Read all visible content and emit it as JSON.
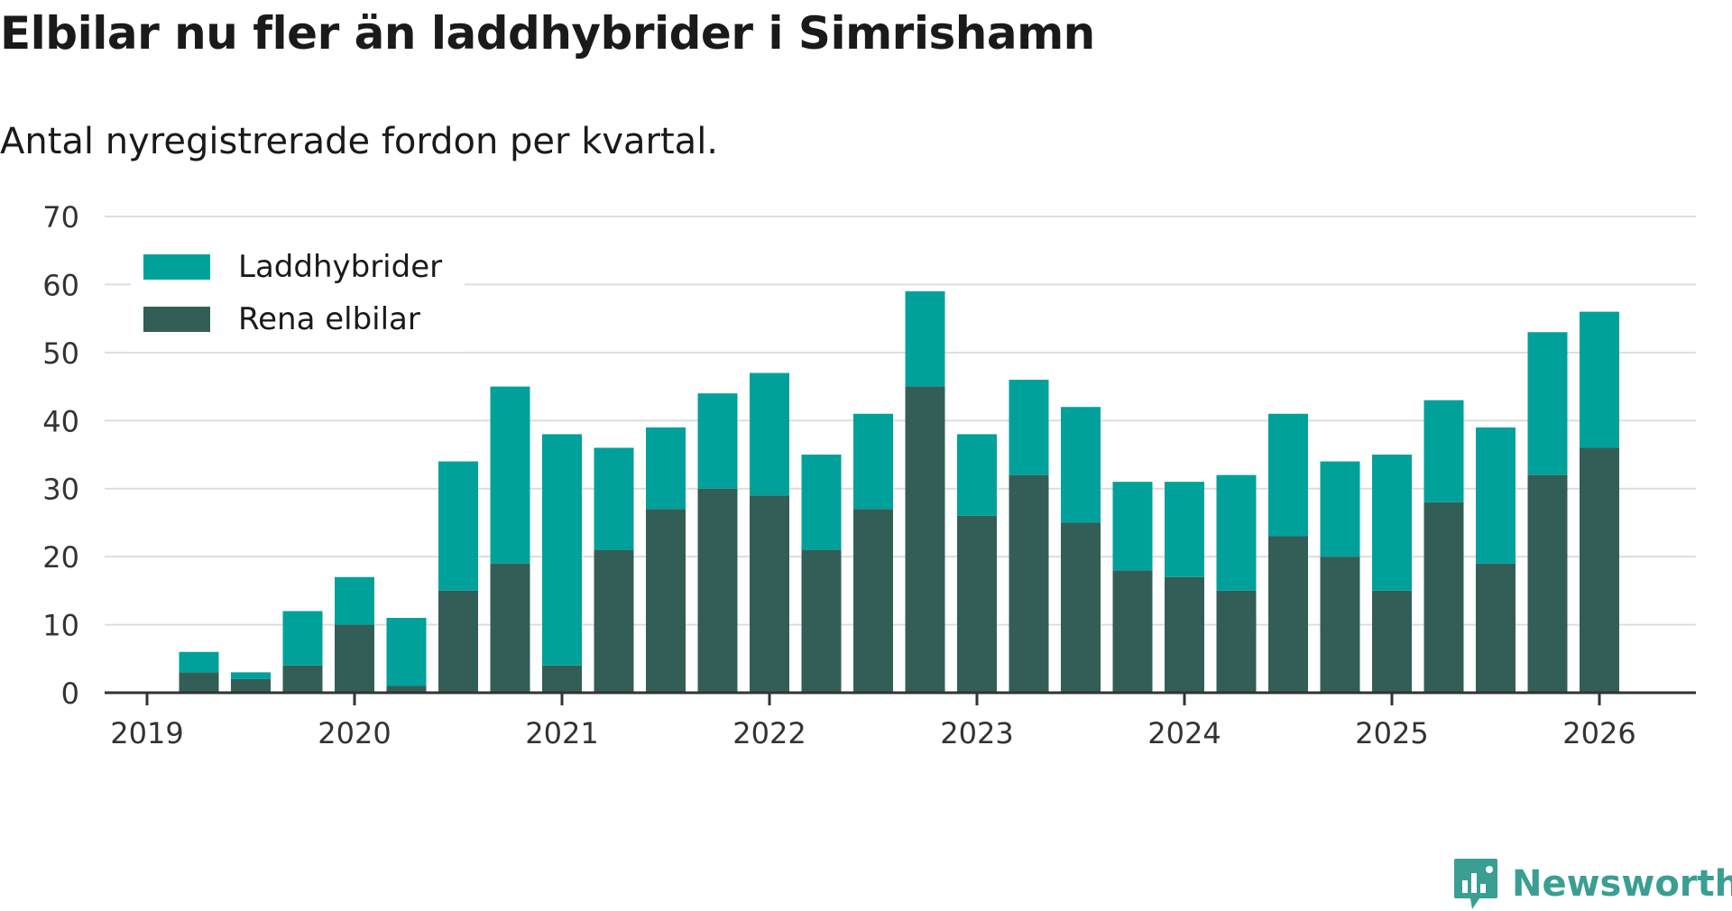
{
  "chart_data": {
    "type": "bar",
    "stacked": true,
    "title": "Elbilar nu fler än laddhybrider i Simrishamn",
    "subtitle": "Antal nyregistrerade fordon per kvartal.",
    "xlabel": "",
    "ylabel": "",
    "ylim": [
      0,
      70
    ],
    "yticks": [
      0,
      10,
      20,
      30,
      40,
      50,
      60,
      70
    ],
    "year_ticks": [
      "2019",
      "2020",
      "2021",
      "2022",
      "2023",
      "2024",
      "2025",
      "2026"
    ],
    "categories": [
      "2019 Q2",
      "2019 Q3",
      "2019 Q4",
      "2020 Q1",
      "2020 Q2",
      "2020 Q3",
      "2020 Q4",
      "2021 Q1",
      "2021 Q2",
      "2021 Q3",
      "2021 Q4",
      "2022 Q1",
      "2022 Q2",
      "2022 Q3",
      "2022 Q4",
      "2023 Q1",
      "2023 Q2",
      "2023 Q3",
      "2023 Q4",
      "2024 Q1",
      "2024 Q2",
      "2024 Q3",
      "2024 Q4",
      "2025 Q1",
      "2025 Q2",
      "2025 Q3",
      "2025 Q4",
      "2026 Q1"
    ],
    "series": [
      {
        "name": "Rena elbilar",
        "color": "#335e58",
        "values": [
          3,
          2,
          4,
          10,
          1,
          15,
          19,
          4,
          21,
          27,
          30,
          29,
          21,
          27,
          45,
          26,
          32,
          25,
          18,
          17,
          15,
          23,
          20,
          15,
          28,
          19,
          32,
          36
        ]
      },
      {
        "name": "Laddhybrider",
        "color": "#00a19a",
        "values": [
          3,
          1,
          8,
          7,
          10,
          19,
          26,
          34,
          15,
          12,
          14,
          18,
          14,
          14,
          14,
          12,
          14,
          17,
          13,
          14,
          17,
          18,
          14,
          20,
          15,
          20,
          21,
          20
        ]
      }
    ],
    "legend": {
      "position": "top-left",
      "entries": [
        "Laddhybrider",
        "Rena elbilar"
      ]
    },
    "grid": true
  },
  "brand": {
    "name": "Newsworthy",
    "color": "#3a9e93"
  }
}
